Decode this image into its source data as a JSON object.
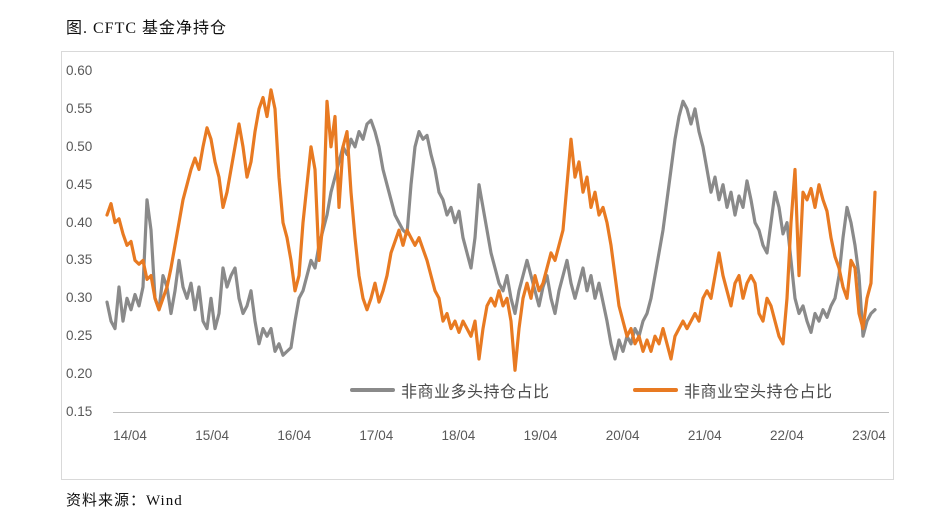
{
  "title": "图. CFTC 基金净持仓",
  "source": "资料来源：Wind",
  "colors": {
    "long_series": "#8a8a8a",
    "short_series": "#e87a22",
    "axis_text": "#595959",
    "frame_border": "#d9d9d9",
    "axis_line": "#bfbfbf"
  },
  "chart_data": {
    "type": "line",
    "title": "图. CFTC 基金净持仓",
    "xlabel": "",
    "ylabel": "",
    "grid": false,
    "legend_position": "bottom-inside",
    "x_axis": {
      "tick_labels": [
        "14/04",
        "15/04",
        "16/04",
        "17/04",
        "18/04",
        "19/04",
        "20/04",
        "21/04",
        "22/04",
        "23/04"
      ],
      "start": "2014/04",
      "end": "2023/04",
      "frequency": "weekly (values below sampled ~every 2-3 weeks)"
    },
    "y_axis": {
      "min": 0.15,
      "max": 0.6,
      "step": 0.05,
      "tick_labels": [
        "0.60",
        "0.55",
        "0.50",
        "0.45",
        "0.40",
        "0.35",
        "0.30",
        "0.25",
        "0.20",
        "0.15"
      ]
    },
    "series": [
      {
        "name": "非商业多头持仓占比",
        "color": "#8a8a8a",
        "values": [
          0.295,
          0.27,
          0.26,
          0.315,
          0.27,
          0.3,
          0.285,
          0.305,
          0.29,
          0.315,
          0.43,
          0.39,
          0.3,
          0.285,
          0.33,
          0.315,
          0.28,
          0.31,
          0.35,
          0.315,
          0.3,
          0.32,
          0.285,
          0.315,
          0.27,
          0.26,
          0.3,
          0.26,
          0.28,
          0.34,
          0.315,
          0.33,
          0.34,
          0.3,
          0.28,
          0.29,
          0.31,
          0.27,
          0.24,
          0.26,
          0.25,
          0.26,
          0.23,
          0.24,
          0.225,
          0.23,
          0.235,
          0.27,
          0.3,
          0.31,
          0.33,
          0.35,
          0.34,
          0.37,
          0.39,
          0.41,
          0.44,
          0.46,
          0.48,
          0.5,
          0.49,
          0.51,
          0.5,
          0.52,
          0.51,
          0.53,
          0.535,
          0.52,
          0.5,
          0.47,
          0.45,
          0.43,
          0.41,
          0.4,
          0.39,
          0.385,
          0.45,
          0.5,
          0.52,
          0.51,
          0.515,
          0.49,
          0.47,
          0.44,
          0.43,
          0.41,
          0.42,
          0.4,
          0.415,
          0.38,
          0.36,
          0.34,
          0.38,
          0.45,
          0.42,
          0.39,
          0.36,
          0.34,
          0.32,
          0.31,
          0.33,
          0.3,
          0.28,
          0.31,
          0.33,
          0.35,
          0.33,
          0.31,
          0.29,
          0.315,
          0.33,
          0.3,
          0.28,
          0.31,
          0.33,
          0.35,
          0.32,
          0.3,
          0.32,
          0.34,
          0.31,
          0.33,
          0.3,
          0.32,
          0.295,
          0.27,
          0.24,
          0.22,
          0.245,
          0.23,
          0.25,
          0.24,
          0.26,
          0.25,
          0.27,
          0.28,
          0.3,
          0.33,
          0.36,
          0.39,
          0.43,
          0.47,
          0.51,
          0.54,
          0.56,
          0.55,
          0.53,
          0.55,
          0.52,
          0.5,
          0.47,
          0.44,
          0.46,
          0.43,
          0.45,
          0.42,
          0.44,
          0.41,
          0.435,
          0.42,
          0.455,
          0.43,
          0.4,
          0.39,
          0.37,
          0.36,
          0.4,
          0.44,
          0.42,
          0.385,
          0.4,
          0.35,
          0.3,
          0.28,
          0.29,
          0.27,
          0.255,
          0.28,
          0.27,
          0.285,
          0.275,
          0.29,
          0.3,
          0.33,
          0.38,
          0.42,
          0.4,
          0.37,
          0.33,
          0.25,
          0.27,
          0.28,
          0.285
        ]
      },
      {
        "name": "非商业空头持仓占比",
        "color": "#e87a22",
        "values": [
          0.41,
          0.425,
          0.4,
          0.405,
          0.385,
          0.37,
          0.375,
          0.35,
          0.345,
          0.35,
          0.325,
          0.33,
          0.3,
          0.285,
          0.3,
          0.315,
          0.34,
          0.37,
          0.4,
          0.43,
          0.45,
          0.47,
          0.485,
          0.47,
          0.5,
          0.525,
          0.51,
          0.48,
          0.46,
          0.42,
          0.44,
          0.47,
          0.5,
          0.53,
          0.5,
          0.46,
          0.48,
          0.52,
          0.55,
          0.565,
          0.54,
          0.575,
          0.55,
          0.46,
          0.4,
          0.38,
          0.35,
          0.31,
          0.33,
          0.4,
          0.45,
          0.5,
          0.47,
          0.35,
          0.4,
          0.56,
          0.5,
          0.54,
          0.42,
          0.5,
          0.52,
          0.44,
          0.38,
          0.33,
          0.3,
          0.285,
          0.3,
          0.32,
          0.295,
          0.31,
          0.33,
          0.36,
          0.375,
          0.39,
          0.37,
          0.39,
          0.38,
          0.37,
          0.38,
          0.365,
          0.35,
          0.33,
          0.31,
          0.3,
          0.27,
          0.28,
          0.26,
          0.27,
          0.255,
          0.27,
          0.26,
          0.25,
          0.27,
          0.22,
          0.26,
          0.29,
          0.3,
          0.29,
          0.31,
          0.29,
          0.3,
          0.27,
          0.205,
          0.26,
          0.3,
          0.32,
          0.3,
          0.33,
          0.31,
          0.32,
          0.34,
          0.36,
          0.35,
          0.37,
          0.39,
          0.45,
          0.51,
          0.46,
          0.48,
          0.44,
          0.46,
          0.42,
          0.44,
          0.41,
          0.42,
          0.4,
          0.37,
          0.33,
          0.29,
          0.27,
          0.25,
          0.26,
          0.24,
          0.25,
          0.23,
          0.245,
          0.23,
          0.25,
          0.24,
          0.26,
          0.24,
          0.22,
          0.25,
          0.26,
          0.27,
          0.26,
          0.27,
          0.28,
          0.27,
          0.3,
          0.31,
          0.3,
          0.33,
          0.36,
          0.33,
          0.31,
          0.29,
          0.32,
          0.33,
          0.3,
          0.32,
          0.33,
          0.32,
          0.28,
          0.27,
          0.3,
          0.29,
          0.27,
          0.25,
          0.24,
          0.3,
          0.4,
          0.47,
          0.33,
          0.44,
          0.43,
          0.445,
          0.42,
          0.45,
          0.43,
          0.415,
          0.38,
          0.355,
          0.34,
          0.315,
          0.3,
          0.35,
          0.34,
          0.28,
          0.26,
          0.3,
          0.32,
          0.44
        ]
      }
    ]
  }
}
